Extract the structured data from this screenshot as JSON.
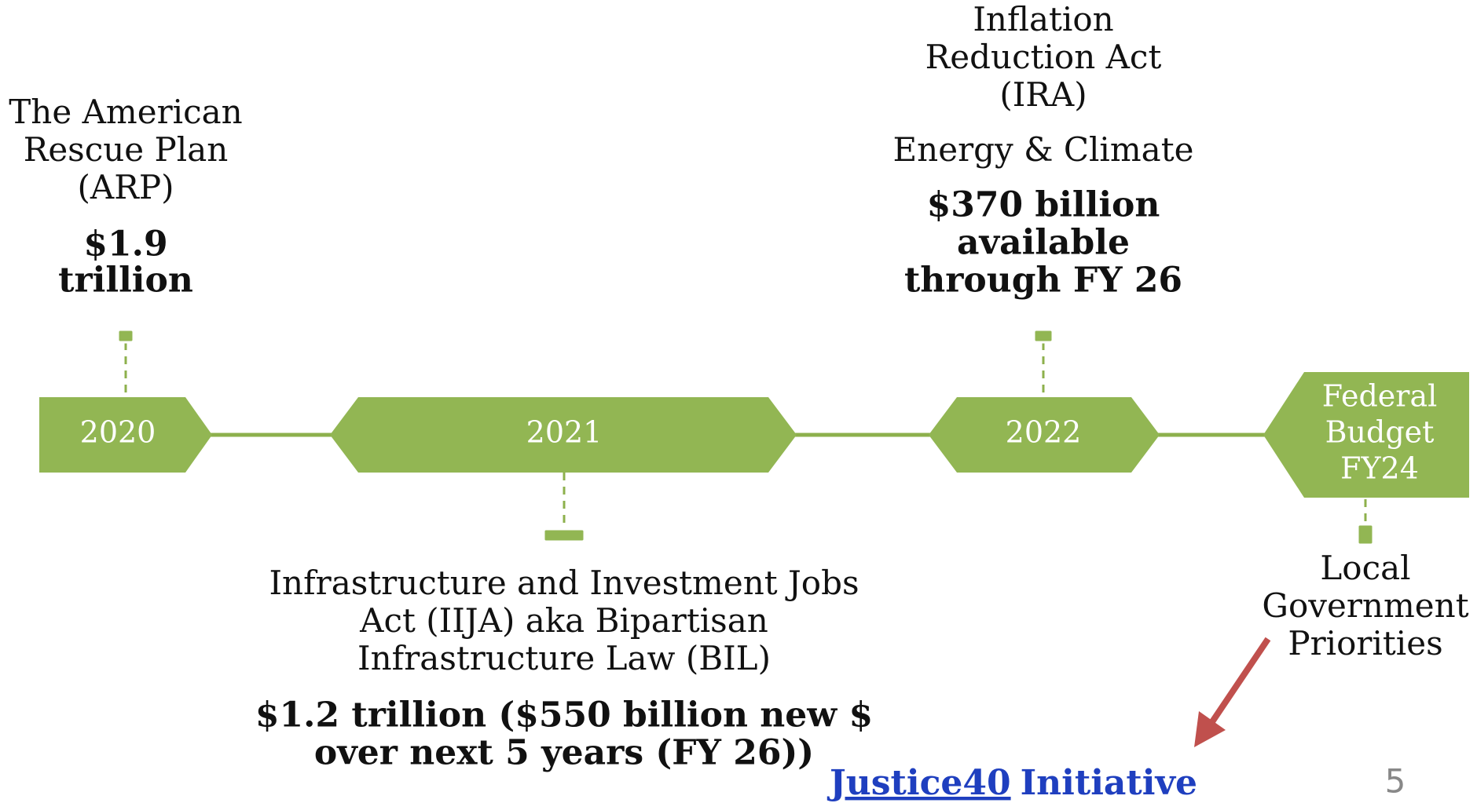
{
  "nodes": [
    {
      "label": [
        "2020"
      ]
    },
    {
      "label": [
        "2021"
      ]
    },
    {
      "label": [
        "2022"
      ]
    },
    {
      "label": [
        "Federal",
        "Budget",
        "FY24"
      ]
    }
  ],
  "events": [
    {
      "title": [
        "The American",
        "Rescue Plan",
        "(ARP)"
      ],
      "amount": [
        "$1.9",
        "trillion"
      ]
    },
    {
      "title": [
        "Infrastructure and Investment Jobs",
        "Act (IIJA) aka Bipartisan",
        "Infrastructure Law (BIL)"
      ],
      "amount": [
        "$1.2 trillion ($550 billion new $",
        "over next 5 years (FY 26))"
      ]
    },
    {
      "title": [
        "Inflation",
        "Reduction Act",
        "(IRA)",
        "Energy & Climate"
      ],
      "amount": [
        "$370 billion",
        "available",
        "through FY 26"
      ]
    },
    {
      "title": [
        "Local",
        "Government",
        "Priorities"
      ]
    }
  ],
  "link": {
    "text": "Justice40",
    "rest": "Initiative"
  },
  "page_number": "5"
}
